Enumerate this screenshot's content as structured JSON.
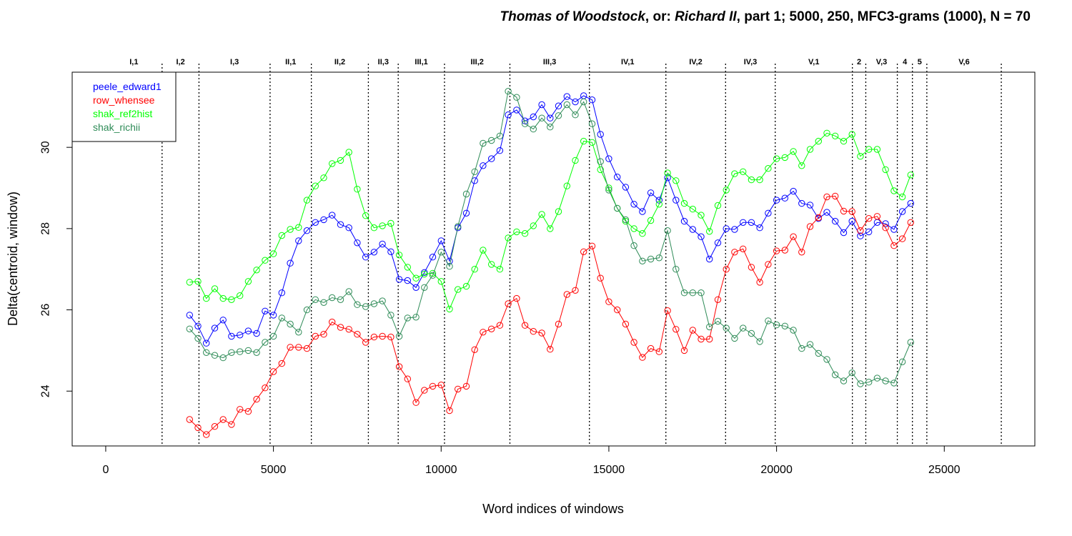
{
  "chart_data": {
    "type": "line",
    "title": {
      "part1": "Thomas of Woodstock",
      "part2": ", or: ",
      "part3": "Richard II",
      "part4": ", part 1; 5000, 250, MFC3-grams (1000), N = 70"
    },
    "xlabel": "Word indices of windows",
    "ylabel": "Delta(centroid, window)",
    "xlim": [
      -1000,
      27700
    ],
    "ylim": [
      22.65,
      31.85
    ],
    "xticks": [
      0,
      5000,
      10000,
      15000,
      20000,
      25000
    ],
    "yticks": [
      24,
      26,
      28,
      30
    ],
    "markers": "open circles",
    "legend_position": "top-left",
    "sections": [
      {
        "label": "I,1",
        "start": 0,
        "end": 1680
      },
      {
        "label": "I,2",
        "start": 1680,
        "end": 2780
      },
      {
        "label": "I,3",
        "start": 2780,
        "end": 4900
      },
      {
        "label": "II,1",
        "start": 4900,
        "end": 6130
      },
      {
        "label": "II,2",
        "start": 6130,
        "end": 7830
      },
      {
        "label": "II,3",
        "start": 7830,
        "end": 8720
      },
      {
        "label": "III,1",
        "start": 8720,
        "end": 10100
      },
      {
        "label": "III,2",
        "start": 10100,
        "end": 12050
      },
      {
        "label": "III,3",
        "start": 12050,
        "end": 14420
      },
      {
        "label": "IV,1",
        "start": 14420,
        "end": 16700
      },
      {
        "label": "IV,2",
        "start": 16700,
        "end": 18480
      },
      {
        "label": "IV,3",
        "start": 18480,
        "end": 19960
      },
      {
        "label": "V,1",
        "start": 19960,
        "end": 22260
      },
      {
        "label": "2",
        "start": 22260,
        "end": 22660
      },
      {
        "label": "V,3",
        "start": 22660,
        "end": 23600
      },
      {
        "label": "4",
        "start": 23600,
        "end": 24050
      },
      {
        "label": "5",
        "start": 24050,
        "end": 24480
      },
      {
        "label": "V,6",
        "start": 24480,
        "end": 26700
      }
    ],
    "section_lines": [
      1680,
      2780,
      4900,
      6130,
      7830,
      8720,
      10100,
      12050,
      14420,
      16700,
      18480,
      19960,
      22260,
      22660,
      23600,
      24050,
      24480,
      26700
    ],
    "x": [
      2500,
      2750,
      3000,
      3250,
      3500,
      3750,
      4000,
      4250,
      4500,
      4750,
      5000,
      5250,
      5500,
      5750,
      6000,
      6250,
      6500,
      6750,
      7000,
      7250,
      7500,
      7750,
      8000,
      8250,
      8500,
      8750,
      9000,
      9250,
      9500,
      9750,
      10000,
      10250,
      10500,
      10750,
      11000,
      11250,
      11500,
      11750,
      12000,
      12250,
      12500,
      12750,
      13000,
      13250,
      13500,
      13750,
      14000,
      14250,
      14500,
      14750,
      15000,
      15250,
      15500,
      15750,
      16000,
      16250,
      16500,
      16750,
      17000,
      17250,
      17500,
      17750,
      18000,
      18250,
      18500,
      18750,
      19000,
      19250,
      19500,
      19750,
      20000,
      20250,
      20500,
      20750,
      21000,
      21250,
      21500,
      21750,
      22000,
      22250,
      22500,
      22750,
      23000,
      23250,
      23500,
      23750,
      24000
    ],
    "series": [
      {
        "name": "peele_edward1",
        "color": "#0000ff",
        "values": [
          25.87,
          25.6,
          25.18,
          25.55,
          25.75,
          25.35,
          25.38,
          25.48,
          25.42,
          25.97,
          25.87,
          26.42,
          27.15,
          27.7,
          27.95,
          28.15,
          28.22,
          28.33,
          28.1,
          28.02,
          27.65,
          27.3,
          27.42,
          27.62,
          27.43,
          26.75,
          26.72,
          26.55,
          26.92,
          27.3,
          27.7,
          27.2,
          28.02,
          28.38,
          29.18,
          29.55,
          29.72,
          29.92,
          30.8,
          30.92,
          30.65,
          30.75,
          31.05,
          30.72,
          31.02,
          31.25,
          31.12,
          31.27,
          31.17,
          30.32,
          29.72,
          29.27,
          29.02,
          28.6,
          28.42,
          28.88,
          28.7,
          29.25,
          28.7,
          28.18,
          27.98,
          27.8,
          27.25,
          27.65,
          28.0,
          27.98,
          28.15,
          28.15,
          28.02,
          28.38,
          28.7,
          28.75,
          28.92,
          28.62,
          28.58,
          28.25,
          28.4,
          28.18,
          27.9,
          28.18,
          27.82,
          27.92,
          28.15,
          28.12,
          27.98,
          28.42,
          28.62
        ]
      },
      {
        "name": "row_whensee",
        "color": "#ff0000",
        "values": [
          23.3,
          23.1,
          22.93,
          23.13,
          23.3,
          23.18,
          23.55,
          23.5,
          23.8,
          24.08,
          24.48,
          24.68,
          25.08,
          25.08,
          25.05,
          25.35,
          25.4,
          25.7,
          25.57,
          25.52,
          25.4,
          25.2,
          25.33,
          25.35,
          25.33,
          24.6,
          24.3,
          23.72,
          24.02,
          24.12,
          24.15,
          23.52,
          24.05,
          24.12,
          25.02,
          25.45,
          25.53,
          25.62,
          26.15,
          26.28,
          25.62,
          25.47,
          25.43,
          25.03,
          25.65,
          26.38,
          26.48,
          27.43,
          27.57,
          26.78,
          26.2,
          26.0,
          25.65,
          25.2,
          24.83,
          25.05,
          24.97,
          25.98,
          25.52,
          25.0,
          25.5,
          25.28,
          25.28,
          26.25,
          27.0,
          27.42,
          27.5,
          27.05,
          26.68,
          27.12,
          27.45,
          27.47,
          27.8,
          27.42,
          28.05,
          28.27,
          28.78,
          28.8,
          28.43,
          28.42,
          27.95,
          28.25,
          28.3,
          28.02,
          27.58,
          27.75,
          28.15
        ]
      },
      {
        "name": "shak_ref2hist",
        "color": "#00ff00",
        "values": [
          26.68,
          26.7,
          26.28,
          26.52,
          26.28,
          26.25,
          26.35,
          26.7,
          26.98,
          27.22,
          27.38,
          27.83,
          27.98,
          28.03,
          28.7,
          29.05,
          29.25,
          29.6,
          29.68,
          29.88,
          28.97,
          28.32,
          28.02,
          28.07,
          28.13,
          27.35,
          27.05,
          26.78,
          26.88,
          26.9,
          26.7,
          26.02,
          26.5,
          26.58,
          27.0,
          27.47,
          27.12,
          27.0,
          27.77,
          27.92,
          27.88,
          28.07,
          28.35,
          28.0,
          28.42,
          29.05,
          29.68,
          30.15,
          30.12,
          29.45,
          29.0,
          28.5,
          28.18,
          28.0,
          27.88,
          28.2,
          28.6,
          29.37,
          29.18,
          28.62,
          28.48,
          28.33,
          27.93,
          28.57,
          28.95,
          29.35,
          29.4,
          29.2,
          29.2,
          29.48,
          29.72,
          29.75,
          29.9,
          29.55,
          29.95,
          30.15,
          30.35,
          30.28,
          30.15,
          30.32,
          29.78,
          29.95,
          29.95,
          29.45,
          28.93,
          28.78,
          29.32
        ]
      },
      {
        "name": "shak_richii",
        "color": "#2e8b57",
        "values": [
          25.53,
          25.3,
          24.95,
          24.88,
          24.82,
          24.95,
          24.97,
          25.0,
          24.95,
          25.2,
          25.35,
          25.8,
          25.65,
          25.45,
          26.0,
          26.25,
          26.18,
          26.3,
          26.25,
          26.45,
          26.13,
          26.08,
          26.15,
          26.22,
          25.87,
          25.35,
          25.8,
          25.82,
          26.55,
          26.85,
          27.42,
          27.07,
          28.05,
          28.85,
          29.4,
          30.1,
          30.17,
          30.28,
          31.38,
          31.23,
          30.58,
          30.45,
          30.72,
          30.5,
          30.78,
          31.05,
          30.8,
          31.12,
          30.58,
          29.65,
          28.95,
          28.5,
          28.22,
          27.58,
          27.2,
          27.25,
          27.28,
          27.95,
          27.0,
          26.42,
          26.42,
          26.42,
          25.58,
          25.72,
          25.55,
          25.3,
          25.55,
          25.42,
          25.22,
          25.73,
          25.63,
          25.6,
          25.5,
          25.05,
          25.15,
          24.93,
          24.78,
          24.4,
          24.25,
          24.45,
          24.18,
          24.22,
          24.32,
          24.25,
          24.2,
          24.72,
          25.2
        ]
      }
    ]
  }
}
